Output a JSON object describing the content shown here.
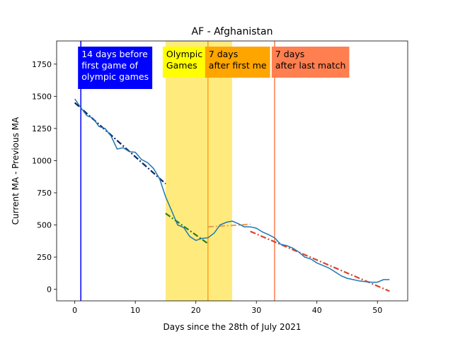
{
  "chart_data": {
    "type": "line",
    "title": "AF - Afghanistan",
    "xlabel": "Days since the 28th of July 2021",
    "ylabel": "Current MA - Previous MA",
    "xlim": [
      -3,
      55
    ],
    "ylim": [
      -90,
      1930
    ],
    "x_ticks": [
      0,
      10,
      20,
      30,
      40,
      50
    ],
    "y_ticks": [
      0,
      250,
      500,
      750,
      1000,
      1250,
      1500,
      1750
    ],
    "grid": false,
    "series": [
      {
        "color": "#1f77b4",
        "x": [
          0,
          1,
          2,
          3,
          4,
          5,
          6,
          7,
          8,
          9,
          10,
          11,
          12,
          13,
          14,
          15,
          16,
          17,
          18,
          19,
          20,
          21,
          22,
          23,
          24,
          25,
          26,
          27,
          28,
          29,
          30,
          31,
          32,
          33,
          34,
          35,
          36,
          37,
          38,
          39,
          40,
          41,
          42,
          43,
          44,
          45,
          46,
          47,
          48,
          49,
          50,
          51,
          52
        ],
        "y": [
          1480,
          1410,
          1350,
          1330,
          1265,
          1250,
          1190,
          1090,
          1100,
          1070,
          1065,
          1010,
          985,
          940,
          860,
          720,
          610,
          500,
          480,
          410,
          380,
          395,
          400,
          435,
          500,
          520,
          530,
          510,
          485,
          485,
          475,
          445,
          425,
          400,
          350,
          340,
          320,
          290,
          250,
          235,
          205,
          185,
          165,
          135,
          105,
          85,
          75,
          65,
          60,
          55,
          55,
          75,
          75
        ]
      }
    ],
    "trend_lines": [
      {
        "color": "#0c2461",
        "x": [
          0,
          15
        ],
        "y": [
          1450,
          820
        ]
      },
      {
        "color": "#2d7a1f",
        "x": [
          15,
          22
        ],
        "y": [
          590,
          355
        ]
      },
      {
        "color": "#e8a05a",
        "x": [
          22,
          29
        ],
        "y": [
          485,
          505
        ]
      },
      {
        "color": "#d9442b",
        "x": [
          29,
          52
        ],
        "y": [
          450,
          -15
        ]
      }
    ],
    "shaded_region": {
      "x": [
        15,
        26
      ],
      "color": "#ffe866"
    },
    "vertical_lines": [
      {
        "x": 1,
        "color": "#0000ff"
      },
      {
        "x": 22,
        "color": "#ff9f1a"
      },
      {
        "x": 33,
        "color": "#ff7f50"
      }
    ],
    "annotations": [
      {
        "x": 1,
        "lines": [
          "14 days before",
          "first game of",
          "olympic games"
        ],
        "bg": "#0000ff",
        "fg": "#ffffff"
      },
      {
        "x": 15,
        "lines": [
          "Olympic",
          "Games"
        ],
        "bg": "#ffff00",
        "fg": "#000000"
      },
      {
        "x": 22,
        "lines": [
          "7 days",
          "after first me"
        ],
        "bg": "#ffa500",
        "fg": "#000000"
      },
      {
        "x": 33,
        "lines": [
          "7 days",
          "after last match"
        ],
        "bg": "#ff7f50",
        "fg": "#000000"
      }
    ]
  }
}
